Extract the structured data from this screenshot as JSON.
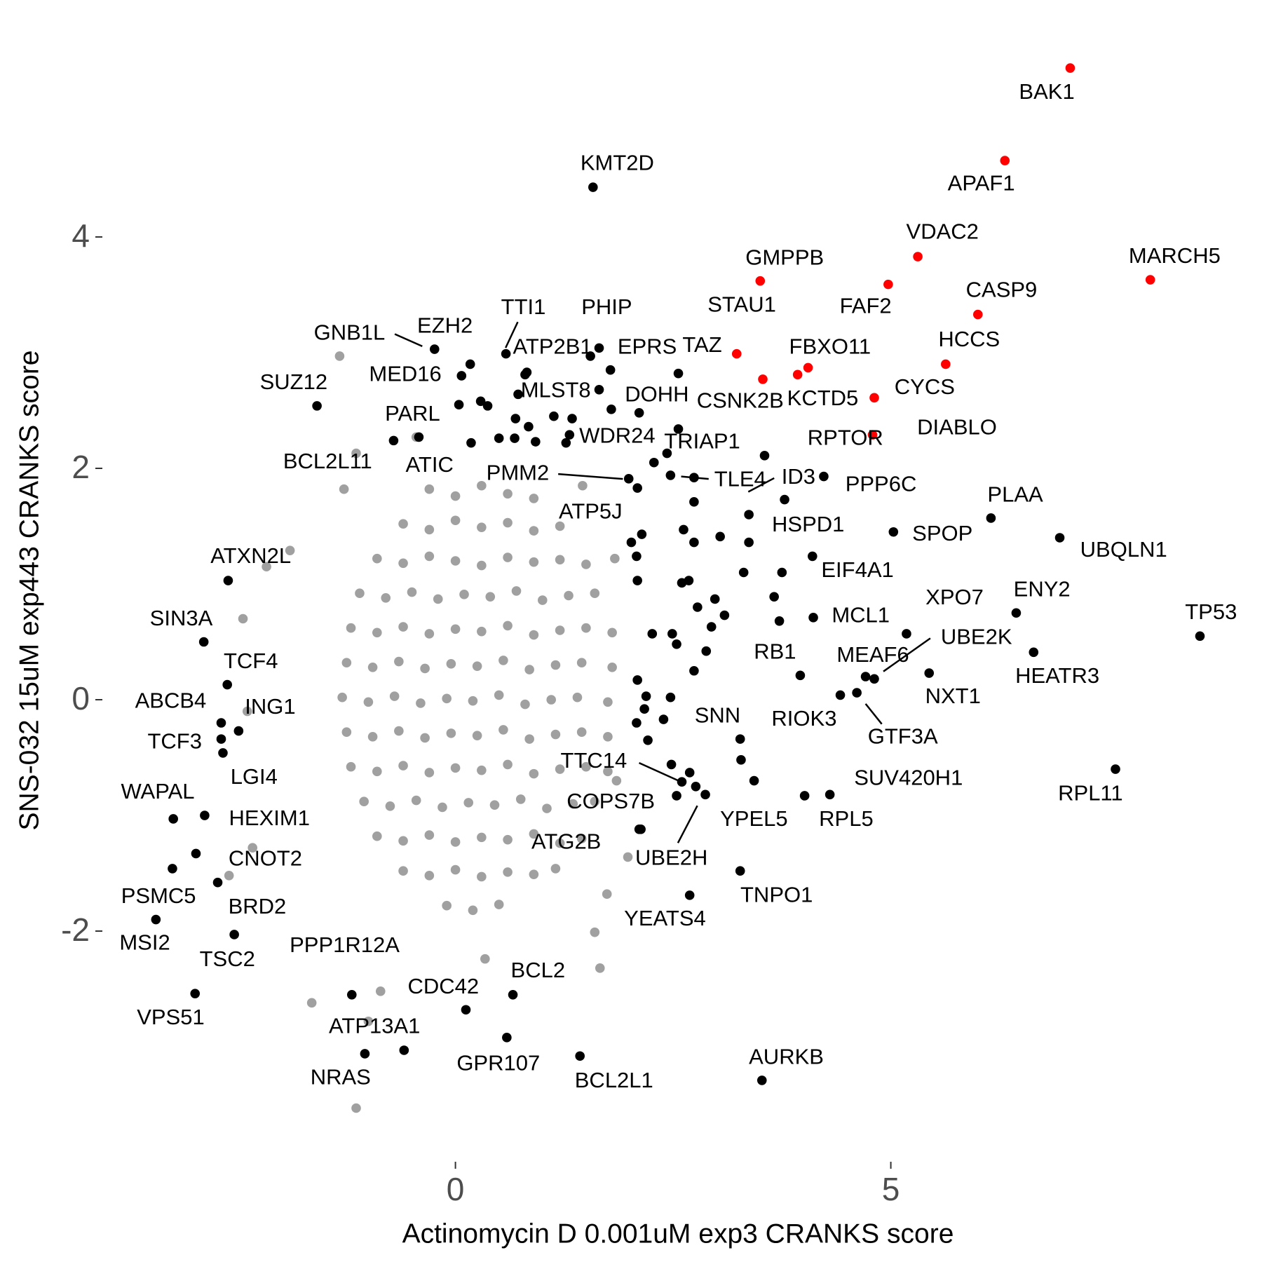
{
  "chart_data": {
    "type": "scatter",
    "xlabel": "Actinomycin D 0.001uM exp3 CRANKS score",
    "ylabel": "SNS-032 15uM exp443 CRANKS score",
    "xlim": [
      -4,
      9.15
    ],
    "ylim": [
      -3.75,
      5.65
    ],
    "xticks": [
      0,
      5
    ],
    "yticks": [
      -2,
      0,
      2,
      4
    ],
    "series": [
      {
        "color": "#a0a0a0",
        "x": [
          -0.3,
          0,
          0.3,
          0.6,
          0.9,
          -0.6,
          -0.3,
          0,
          0.3,
          0.6,
          0.9,
          1.2,
          -0.9,
          -0.6,
          -0.3,
          0,
          0.3,
          0.6,
          0.9,
          1.2,
          1.5,
          -1.1,
          -0.8,
          -0.5,
          -0.2,
          0.1,
          0.4,
          0.7,
          1.0,
          1.3,
          1.6,
          -1.2,
          -0.9,
          -0.6,
          -0.3,
          0,
          0.3,
          0.6,
          0.9,
          1.2,
          1.5,
          1.8,
          -1.25,
          -0.95,
          -0.65,
          -0.35,
          -0.05,
          0.25,
          0.55,
          0.85,
          1.15,
          1.45,
          1.8,
          -1.3,
          -1.0,
          -0.7,
          -0.4,
          -0.1,
          0.2,
          0.5,
          0.8,
          1.1,
          1.4,
          1.75,
          -1.25,
          -0.95,
          -0.65,
          -0.35,
          -0.05,
          0.25,
          0.55,
          0.85,
          1.15,
          1.45,
          1.75,
          -1.2,
          -0.9,
          -0.6,
          -0.3,
          0,
          0.3,
          0.6,
          0.9,
          1.2,
          1.5,
          1.75,
          -1.05,
          -0.75,
          -0.45,
          -0.15,
          0.15,
          0.45,
          0.75,
          1.05,
          1.35,
          1.6,
          -0.9,
          -0.6,
          -0.3,
          0,
          0.3,
          0.6,
          0.9,
          1.2,
          1.45,
          -0.6,
          -0.3,
          0,
          0.3,
          0.6,
          0.9,
          1.15,
          -0.1,
          0.2,
          0.5,
          -1.33,
          -1.14,
          1.74,
          1.66,
          1.6,
          -1.65,
          -2.44,
          -1.9,
          -2.17,
          -1.28,
          1.98,
          -2.6,
          -2.33,
          -2.39,
          1.85,
          1.46,
          -1.14,
          -0.45,
          1.83,
          -1.0,
          -0.86,
          0.34
        ],
        "y": [
          1.82,
          1.76,
          1.85,
          1.78,
          1.74,
          1.52,
          1.47,
          1.55,
          1.49,
          1.53,
          1.46,
          1.5,
          1.22,
          1.18,
          1.24,
          1.2,
          1.16,
          1.23,
          1.19,
          1.21,
          1.17,
          0.92,
          0.88,
          0.93,
          0.87,
          0.91,
          0.89,
          0.94,
          0.86,
          0.9,
          0.92,
          0.62,
          0.58,
          0.63,
          0.57,
          0.61,
          0.59,
          0.64,
          0.56,
          0.6,
          0.62,
          0.58,
          0.32,
          0.28,
          0.33,
          0.27,
          0.31,
          0.29,
          0.34,
          0.26,
          0.3,
          0.32,
          0.28,
          0.02,
          -0.02,
          0.03,
          -0.03,
          0.01,
          -0.01,
          0.04,
          -0.04,
          0,
          0.02,
          -0.02,
          -0.28,
          -0.32,
          -0.27,
          -0.33,
          -0.29,
          -0.31,
          -0.26,
          -0.34,
          -0.3,
          -0.28,
          -0.32,
          -0.58,
          -0.62,
          -0.57,
          -0.63,
          -0.59,
          -0.61,
          -0.56,
          -0.64,
          -0.6,
          -0.58,
          -0.62,
          -0.88,
          -0.92,
          -0.87,
          -0.93,
          -0.89,
          -0.91,
          -0.86,
          -0.94,
          -0.9,
          -0.88,
          -1.18,
          -1.22,
          -1.17,
          -1.23,
          -1.19,
          -1.21,
          -1.16,
          -1.24,
          -1.2,
          -1.48,
          -1.52,
          -1.47,
          -1.53,
          -1.49,
          -1.51,
          -1.46,
          -1.78,
          -1.82,
          -1.77,
          2.97,
          -3.53,
          -1.68,
          -2.32,
          -2.01,
          -2.62,
          0.7,
          1.29,
          1.15,
          1.82,
          -1.36,
          -1.52,
          -1.28,
          -0.1,
          -0.7,
          1.85,
          2.13,
          2.27,
          1.22,
          -2.78,
          -2.52,
          -2.24
        ]
      },
      {
        "color": "#000000",
        "x": [
          2.02,
          2.14,
          2.08,
          2.09,
          2.26,
          2.49,
          2.54,
          2.74,
          2.09,
          2.19,
          2.47,
          2.39,
          2.08,
          2.21,
          2.78,
          2.98,
          2.94,
          3.09,
          2.88,
          3.28,
          3.43,
          2.69,
          3.66,
          3.72,
          3.75,
          3.31,
          3.37,
          2.74,
          2.74,
          2.62,
          3.04,
          2.47,
          2.28,
          2.43,
          1.27,
          0.5,
          0.68,
          0.92,
          0.29,
          0.37,
          0.84,
          1.13,
          1.34,
          0.69,
          0.04,
          0.72,
          0.8,
          1.79,
          1.55,
          2.6,
          2.68,
          2.48,
          2.17,
          2.13
        ],
        "y": [
          1.36,
          1.43,
          1.24,
          1.03,
          0.57,
          0.57,
          0.48,
          0.25,
          0.17,
          0.03,
          0.02,
          -0.17,
          -0.2,
          -0.35,
          0.8,
          0.87,
          0.63,
          0.73,
          0.42,
          -0.52,
          -0.7,
          -0.63,
          0.89,
          0.68,
          1.1,
          1.1,
          1.36,
          1.71,
          1.36,
          1.47,
          1.41,
          1.94,
          2.05,
          2.13,
          2.22,
          2.26,
          2.26,
          2.23,
          2.58,
          2.54,
          2.36,
          2.45,
          2.43,
          2.43,
          2.55,
          2.64,
          2.81,
          2.51,
          2.97,
          1.01,
          1.03,
          -0.56,
          -0.08,
          -1.12
        ]
      },
      {
        "color": "#000000",
        "labels": [
          "KMT2D",
          "TTI1",
          "PHIP",
          "GNB1L",
          "EZH2",
          "ATP2B1",
          "EPRS",
          "TAZ",
          "MED16",
          "SUZ12",
          "MLST8",
          "DOHH",
          "PARL",
          "WDR24",
          "TRIAP1",
          "BCL2L11",
          "ATIC",
          "PMM2",
          "TLE4",
          "ID3",
          "PPP6C",
          "RPTOR",
          "ATP5J",
          "HSPD1",
          "SPOP",
          "PLAA",
          "UBQLN1",
          "ATXN2L",
          "EIF4A1",
          "XPO7",
          "MCL1",
          "ENY2",
          "TP53",
          "SIN3A",
          "UBE2K",
          "RB1",
          "MEAF6",
          "HEATR3",
          "TCF4",
          "NXT1",
          "ABCB4",
          "ING1",
          "RIOK3",
          "SNN",
          "GTF3A",
          "TCF3",
          "LGI4",
          "TTC14",
          "SUV420H1",
          "WAPAL",
          "RPL11",
          "COPS7B",
          "HEXIM1",
          "YPEL5",
          "RPL5",
          "UBE2H",
          "ATG2B",
          "CNOT2",
          "PSMC5",
          "TNPO1",
          "BRD2",
          "YEATS4",
          "MSI2",
          "TSC2",
          "PPP1R12A",
          "ATP13A1",
          "NRAS",
          "BCL2",
          "CDC42",
          "VPS51",
          "GPR107",
          "BCL2L1",
          "AURKB"
        ],
        "x": [
          1.58,
          0.58,
          1.65,
          -0.24,
          0.17,
          0.82,
          1.78,
          2.56,
          0.07,
          -1.59,
          1.65,
          2.11,
          -0.71,
          1.31,
          2.56,
          -0.42,
          0.18,
          1.99,
          2.74,
          3.55,
          4.23,
          3.78,
          2.09,
          3.37,
          5.03,
          6.15,
          6.94,
          -2.61,
          4.1,
          5.18,
          4.11,
          6.44,
          8.55,
          -2.89,
          4.81,
          3.96,
          4.71,
          6.64,
          -2.62,
          5.44,
          -2.69,
          -2.49,
          4.42,
          3.27,
          4.61,
          -2.69,
          -2.67,
          2.6,
          4.3,
          -2.88,
          7.58,
          2.54,
          -3.24,
          2.87,
          4.01,
          2.76,
          2.11,
          -2.98,
          -3.25,
          3.27,
          -2.73,
          2.69,
          -3.44,
          -2.54,
          -1.19,
          -0.59,
          -1.04,
          0.66,
          0.12,
          -2.99,
          0.59,
          1.43,
          3.52
        ],
        "y": [
          4.43,
          2.99,
          3.04,
          3.03,
          2.9,
          2.83,
          2.85,
          2.82,
          2.8,
          2.54,
          2.68,
          2.48,
          2.24,
          2.29,
          2.34,
          2.27,
          2.22,
          1.91,
          1.92,
          2.11,
          1.93,
          1.73,
          1.83,
          1.6,
          1.45,
          1.57,
          1.4,
          1.03,
          1.24,
          0.57,
          0.71,
          0.75,
          0.55,
          0.5,
          0.18,
          0.21,
          0.2,
          0.41,
          0.13,
          0.23,
          -0.2,
          -0.27,
          0.04,
          -0.34,
          0.06,
          -0.34,
          -0.46,
          -0.71,
          -0.82,
          -1.0,
          -0.6,
          -0.83,
          -1.03,
          -0.82,
          -0.83,
          -0.75,
          -1.12,
          -1.33,
          -1.46,
          -1.48,
          -1.58,
          -1.69,
          -1.9,
          -2.03,
          -2.55,
          -3.03,
          -3.06,
          -2.55,
          -2.68,
          -2.54,
          -2.92,
          -3.08,
          -3.29
        ]
      },
      {
        "color": "#ff0000",
        "labels": [
          "BAK1",
          "APAF1",
          "VDAC2",
          "MARCH5",
          "GMPPB",
          "FAF2",
          "CASP9",
          "STAU1",
          "CSNK2B",
          "KCTD5",
          "FBXO11",
          "HCCS",
          "CYCS",
          "DIABLO"
        ],
        "x": [
          7.06,
          6.31,
          5.31,
          7.98,
          3.5,
          4.97,
          6.0,
          3.23,
          3.53,
          3.93,
          4.05,
          5.63,
          4.81,
          4.79
        ],
        "y": [
          5.46,
          4.66,
          3.83,
          3.63,
          3.62,
          3.59,
          3.33,
          2.99,
          2.77,
          2.81,
          2.87,
          2.9,
          2.61,
          2.29
        ]
      }
    ]
  }
}
